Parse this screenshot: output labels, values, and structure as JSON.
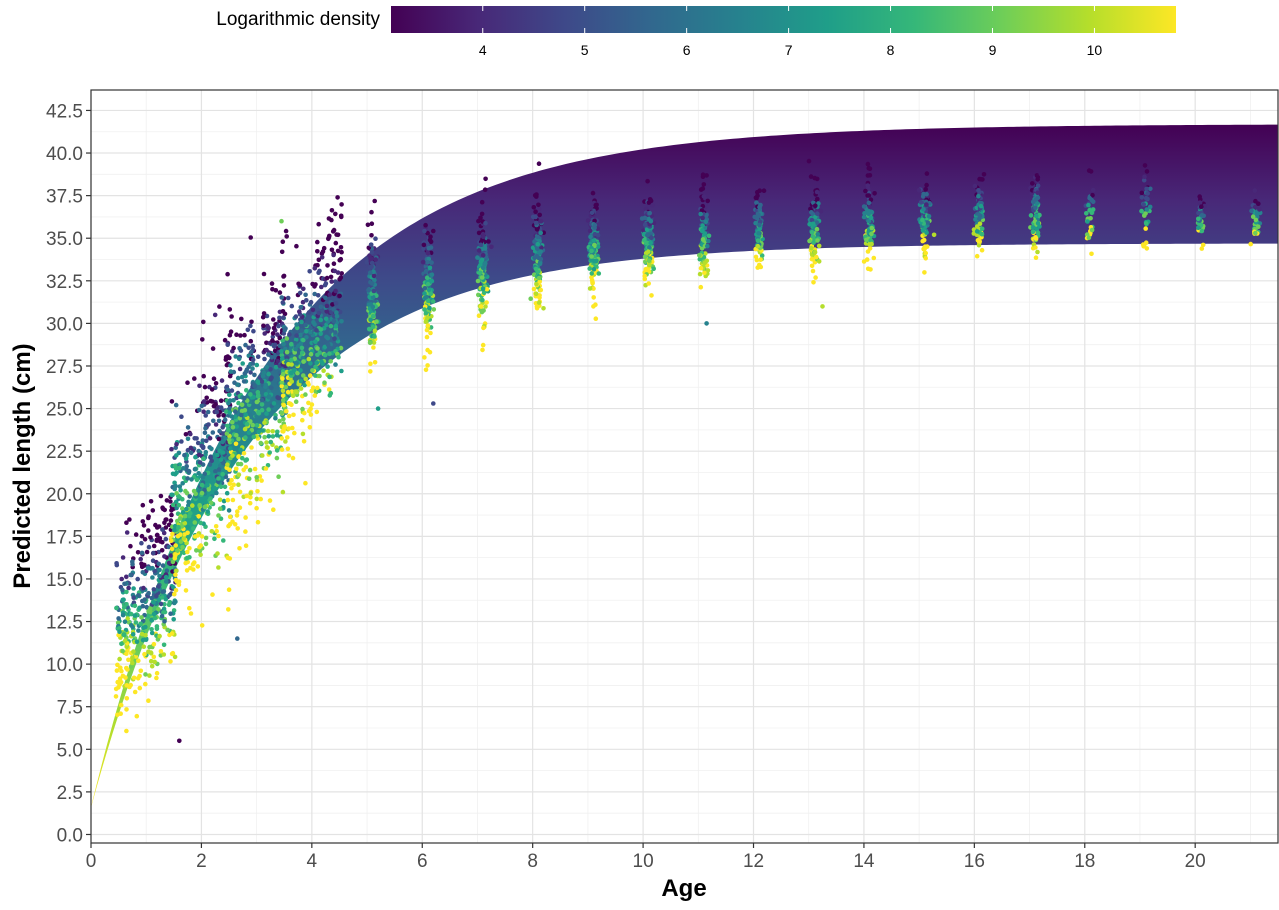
{
  "chart_data": {
    "type": "scatter",
    "title": "",
    "xlabel": "Age",
    "ylabel": "Predicted length (cm)",
    "xlim": [
      0,
      21.5
    ],
    "ylim": [
      -0.5,
      43.7
    ],
    "x_ticks": [
      0,
      2,
      4,
      6,
      8,
      10,
      12,
      14,
      16,
      18,
      20
    ],
    "x_tick_labels": [
      "0",
      "2",
      "4",
      "6",
      "8",
      "10",
      "12",
      "14",
      "16",
      "18",
      "20"
    ],
    "y_ticks": [
      0,
      2.5,
      5,
      7.5,
      10,
      12.5,
      15,
      17.5,
      20,
      22.5,
      25,
      27.5,
      30,
      32.5,
      35,
      37.5,
      40,
      42.5
    ],
    "y_tick_labels": [
      "0.0",
      "2.5",
      "5.0",
      "7.5",
      "10.0",
      "12.5",
      "15.0",
      "17.5",
      "20.0",
      "22.5",
      "25.0",
      "27.5",
      "30.0",
      "32.5",
      "35.0",
      "37.5",
      "40.0",
      "42.5"
    ],
    "grid": true,
    "legend": {
      "title": "Logarithmic density",
      "position": "top",
      "type": "colorbar",
      "range": [
        3.1,
        10.8
      ],
      "ticks": [
        4,
        5,
        6,
        7,
        8,
        9,
        10
      ],
      "tick_labels": [
        "4",
        "5",
        "6",
        "7",
        "8",
        "9",
        "10"
      ],
      "colors": [
        "#440154",
        "#482878",
        "#3e4989",
        "#31688e",
        "#26828e",
        "#1f9e89",
        "#35b779",
        "#6ece58",
        "#b5de2b",
        "#fde725"
      ]
    },
    "growth_band": {
      "description_curve": "von Bertalanffy",
      "upper_curve": {
        "linf": 41.7,
        "k": 0.33,
        "t0": -0.12
      },
      "lower_curve": {
        "linf": 34.7,
        "k": 0.36,
        "t0": -0.13
      },
      "x_range": [
        0,
        21.5
      ],
      "color_top": "#440154",
      "color_bottom": "#fde725"
    },
    "observations": {
      "age_groups": [
        {
          "age": 1,
          "mean": 13.5,
          "sd": 2.4
        },
        {
          "age": 2,
          "mean": 21.0,
          "sd": 3.2
        },
        {
          "age": 3,
          "mean": 25.5,
          "sd": 3.0
        },
        {
          "age": 4,
          "mean": 29.0,
          "sd": 2.5
        },
        {
          "age": 5,
          "mean": 31.5,
          "sd": 2.0
        },
        {
          "age": 6,
          "mean": 32.3,
          "sd": 1.8
        },
        {
          "age": 7,
          "mean": 33.2,
          "sd": 1.6
        },
        {
          "age": 8,
          "mean": 34.0,
          "sd": 1.5
        },
        {
          "age": 9,
          "mean": 34.6,
          "sd": 1.4
        },
        {
          "age": 10,
          "mean": 35.0,
          "sd": 1.3
        },
        {
          "age": 11,
          "mean": 35.2,
          "sd": 1.3
        },
        {
          "age": 12,
          "mean": 35.5,
          "sd": 1.2
        },
        {
          "age": 13,
          "mean": 35.7,
          "sd": 1.2
        },
        {
          "age": 14,
          "mean": 36.0,
          "sd": 1.2
        },
        {
          "age": 15,
          "mean": 36.2,
          "sd": 1.1
        },
        {
          "age": 16,
          "mean": 36.3,
          "sd": 1.1
        },
        {
          "age": 17,
          "mean": 36.5,
          "sd": 1.1
        },
        {
          "age": 18,
          "mean": 36.5,
          "sd": 1.0
        },
        {
          "age": 19,
          "mean": 36.7,
          "sd": 1.0
        },
        {
          "age": 20,
          "mean": 36.2,
          "sd": 0.8
        },
        {
          "age": 21,
          "mean": 36.3,
          "sd": 0.8
        }
      ],
      "outliers": [
        {
          "x": 1.6,
          "y": 5.5
        },
        {
          "x": 2.65,
          "y": 11.5
        },
        {
          "x": 3.45,
          "y": 36.0
        },
        {
          "x": 2.25,
          "y": 30.5
        },
        {
          "x": 11.15,
          "y": 30.0
        },
        {
          "x": 13.25,
          "y": 31.0
        },
        {
          "x": 6.2,
          "y": 25.3
        },
        {
          "x": 5.2,
          "y": 25.0
        },
        {
          "x": 9.1,
          "y": 31.0
        }
      ]
    }
  }
}
